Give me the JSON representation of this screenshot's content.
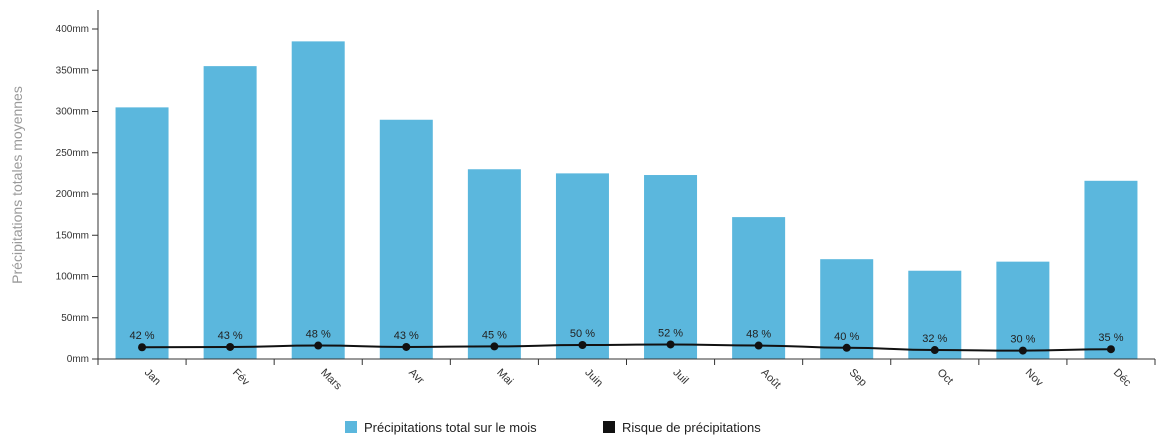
{
  "chart_data": {
    "type": "bar",
    "categories": [
      "Jan",
      "Fév",
      "Mars",
      "Avr",
      "Mai",
      "Juin",
      "Juil",
      "Août",
      "Sep",
      "Oct",
      "Nov",
      "Déc"
    ],
    "ylabel": "Précipitations totales moyennes",
    "yunit": "mm",
    "ylim": [
      0,
      400
    ],
    "yticks": [
      "0mm",
      "50mm",
      "100mm",
      "150mm",
      "200mm",
      "250mm",
      "300mm",
      "350mm",
      "400mm"
    ],
    "series": [
      {
        "name": "Précipitations total sur le mois",
        "type": "bar",
        "color": "#5bb7dd",
        "values": [
          305,
          355,
          385,
          290,
          230,
          225,
          223,
          172,
          121,
          107,
          118,
          216
        ]
      },
      {
        "name": "Risque de précipitations",
        "type": "line",
        "color": "#111111",
        "values": [
          42,
          43,
          48,
          43,
          45,
          50,
          52,
          48,
          40,
          32,
          30,
          35
        ],
        "labels": [
          "42 %",
          "43 %",
          "48 %",
          "43 %",
          "45 %",
          "50 %",
          "52 %",
          "48 %",
          "40 %",
          "32 %",
          "30 %",
          "35 %"
        ]
      }
    ],
    "grid": false,
    "legend": "bottom-center"
  }
}
